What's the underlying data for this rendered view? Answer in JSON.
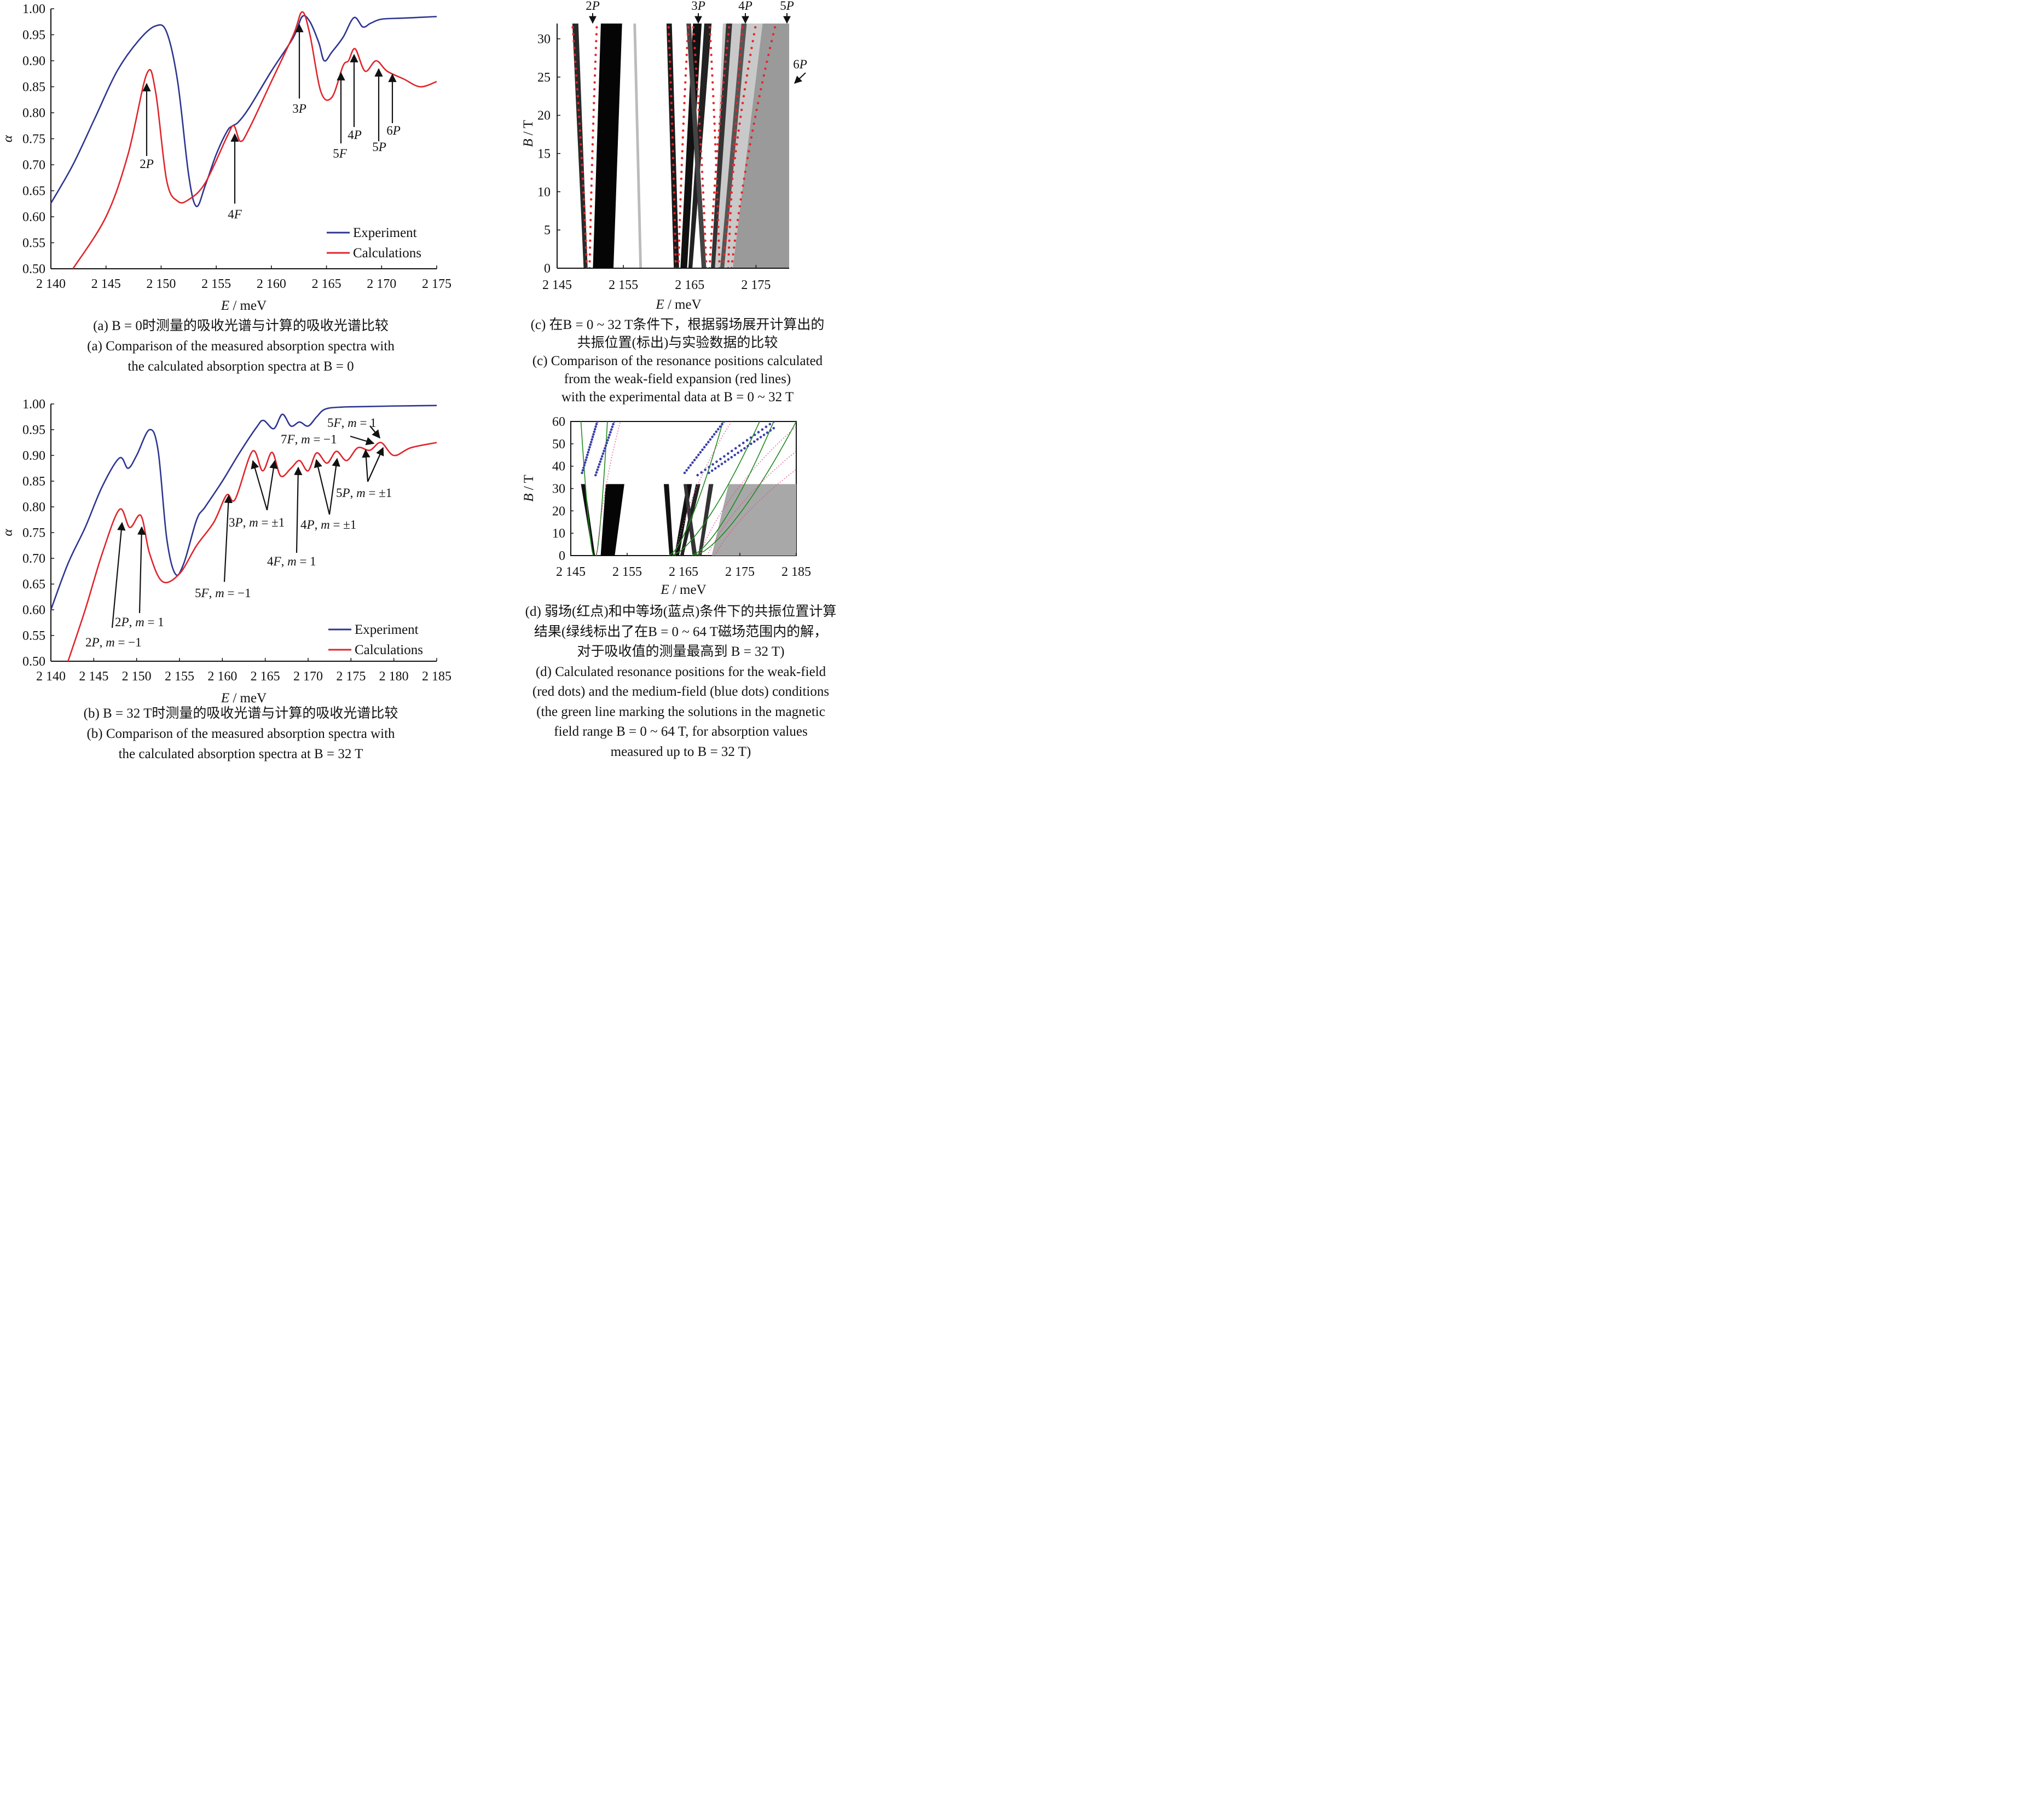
{
  "colors": {
    "experiment": "#2d3590",
    "calculations": "#e0242b",
    "axis": "#111111",
    "dots": "#e8262a",
    "green": "#1f8a1f",
    "blue": "#3b3fa8"
  },
  "panels": {
    "a": {
      "caption_cn": [
        "(a) B = 0时测量的吸收光谱与计算的吸收光谱比较"
      ],
      "caption_en": [
        "(a) Comparison of the measured absorption  spectra with",
        "the calculated absorption spectra at B = 0"
      ]
    },
    "b": {
      "caption_cn": [
        "(b) B = 32 T时测量的吸收光谱与计算的吸收光谱比较"
      ],
      "caption_en": [
        "(b) Comparison of the measured absorption  spectra with",
        "the calculated absorption spectra at B = 32 T"
      ]
    },
    "c": {
      "caption_cn": [
        "(c) 在B = 0 ~ 32 T条件下，根据弱场展开计算出的",
        "共振位置(标出)与实验数据的比较"
      ],
      "caption_en": [
        "(c) Comparison of the resonance positions calculated",
        "from the weak-field expansion (red lines)",
        "with the experimental data at B = 0 ~ 32 T"
      ]
    },
    "d": {
      "caption_cn": [
        "(d) 弱场(红点)和中等场(蓝点)条件下的共振位置计算",
        "结果(绿线标出了在B = 0 ~ 64 T磁场范围内的解，",
        "对于吸收值的测量最高到 B = 32 T)"
      ],
      "caption_en": [
        "(d) Calculated resonance positions for the weak-field",
        "(red dots) and the medium-field (blue dots) conditions",
        "(the green line marking the solutions in the magnetic",
        "field  range B = 0 ~ 64 T, for absorption values",
        "measured up to B = 32 T)"
      ]
    }
  },
  "chart_data": [
    {
      "id": "a",
      "type": "line",
      "title": "",
      "xlabel": "E / meV",
      "ylabel": "α",
      "xlim": [
        2140,
        2175
      ],
      "ylim": [
        0.5,
        1.0
      ],
      "xticks": [
        "2 140",
        "2 145",
        "2 150",
        "2 155",
        "2 160",
        "2 165",
        "2 170",
        "2 175"
      ],
      "yticks": [
        "0.50",
        "0.55",
        "0.60",
        "0.65",
        "0.70",
        "0.75",
        "0.80",
        "0.85",
        "0.90",
        "0.95",
        "1.00"
      ],
      "legend": {
        "position": "bottom-right",
        "entries": [
          "Experiment",
          "Calculations"
        ]
      },
      "series": [
        {
          "name": "Experiment",
          "color": "#2d3590",
          "x": [
            2140,
            2142,
            2144,
            2146,
            2148,
            2149.5,
            2150.5,
            2151.5,
            2152.5,
            2153.2,
            2154,
            2155,
            2156,
            2156.5,
            2157,
            2158,
            2160,
            2162,
            2162.8,
            2163.5,
            2164.3,
            2164.8,
            2165.5,
            2166.5,
            2167.5,
            2168.3,
            2169,
            2170,
            2172,
            2175
          ],
          "y": [
            0.626,
            0.7,
            0.79,
            0.88,
            0.94,
            0.967,
            0.955,
            0.86,
            0.68,
            0.62,
            0.66,
            0.72,
            0.765,
            0.775,
            0.782,
            0.81,
            0.88,
            0.945,
            0.985,
            0.975,
            0.935,
            0.9,
            0.917,
            0.945,
            0.983,
            0.965,
            0.972,
            0.98,
            0.982,
            0.985
          ]
        },
        {
          "name": "Calculations",
          "color": "#e0242b",
          "x": [
            2142,
            2145,
            2147,
            2148.7,
            2149.5,
            2150.5,
            2151.5,
            2152.5,
            2154,
            2156,
            2156.6,
            2157.2,
            2158,
            2160,
            2162,
            2162.8,
            2163.5,
            2164.5,
            2165.5,
            2166.5,
            2167,
            2167.6,
            2168.5,
            2169.5,
            2170.5,
            2172,
            2173.5,
            2175
          ],
          "y": [
            0.5,
            0.6,
            0.72,
            0.875,
            0.84,
            0.67,
            0.63,
            0.633,
            0.665,
            0.755,
            0.775,
            0.745,
            0.77,
            0.86,
            0.95,
            0.994,
            0.95,
            0.84,
            0.83,
            0.89,
            0.9,
            0.923,
            0.88,
            0.9,
            0.88,
            0.865,
            0.85,
            0.86
          ]
        }
      ],
      "annotations": [
        "2P",
        "4F",
        "3P",
        "5F",
        "4P",
        "5P",
        "6P"
      ]
    },
    {
      "id": "b",
      "type": "line",
      "title": "",
      "xlabel": "E / meV",
      "ylabel": "α",
      "xlim": [
        2140,
        2185
      ],
      "ylim": [
        0.5,
        1.0
      ],
      "xticks": [
        "2 140",
        "2 145",
        "2 150",
        "2 155",
        "2 160",
        "2 165",
        "2 170",
        "2 175",
        "2 180",
        "2 185"
      ],
      "yticks": [
        "0.50",
        "0.55",
        "0.60",
        "0.65",
        "0.70",
        "0.75",
        "0.80",
        "0.85",
        "0.90",
        "0.95",
        "1.00"
      ],
      "legend": {
        "position": "bottom-right",
        "entries": [
          "Experiment",
          "Calculations"
        ]
      },
      "series": [
        {
          "name": "Experiment",
          "color": "#2d3590",
          "x": [
            2140,
            2142,
            2144,
            2146,
            2148,
            2149,
            2150,
            2151.5,
            2152.5,
            2153.5,
            2154.5,
            2155.5,
            2157,
            2158,
            2160,
            2162,
            2164,
            2164.8,
            2166,
            2167,
            2168,
            2169,
            2170,
            2171,
            2172,
            2174,
            2177,
            2180,
            2185
          ],
          "y": [
            0.6,
            0.69,
            0.76,
            0.84,
            0.895,
            0.875,
            0.9,
            0.95,
            0.91,
            0.74,
            0.67,
            0.69,
            0.775,
            0.8,
            0.85,
            0.905,
            0.955,
            0.968,
            0.952,
            0.98,
            0.957,
            0.965,
            0.957,
            0.975,
            0.99,
            0.994,
            0.995,
            0.996,
            0.997
          ]
        },
        {
          "name": "Calculations",
          "color": "#e0242b",
          "x": [
            2142,
            2144,
            2146,
            2148,
            2149.2,
            2150.5,
            2151.5,
            2153,
            2155,
            2157,
            2159,
            2160.5,
            2161.5,
            2163.5,
            2164.7,
            2165.8,
            2166.8,
            2168,
            2169,
            2170,
            2171,
            2172.2,
            2173.3,
            2174.5,
            2175.8,
            2177.2,
            2178.5,
            2180,
            2182,
            2185
          ],
          "y": [
            0.5,
            0.6,
            0.71,
            0.795,
            0.76,
            0.783,
            0.71,
            0.655,
            0.67,
            0.725,
            0.77,
            0.823,
            0.815,
            0.908,
            0.87,
            0.906,
            0.86,
            0.875,
            0.89,
            0.87,
            0.905,
            0.885,
            0.908,
            0.89,
            0.915,
            0.91,
            0.925,
            0.9,
            0.915,
            0.925
          ]
        }
      ],
      "annotations": [
        "2P, m = 1",
        "2P, m = −1",
        "5F, m = −1",
        "3P, m = ±1",
        "4F, m = 1",
        "4P, m = ±1",
        "5P, m = ±1",
        "7F, m = −1",
        "5F, m = 1"
      ]
    },
    {
      "id": "c",
      "type": "heatmap",
      "title": "",
      "xlabel": "E / meV",
      "ylabel": "B / T",
      "xlim": [
        2145,
        2180
      ],
      "ylim": [
        0,
        32
      ],
      "xticks": [
        "2 145",
        "2 155",
        "2 165",
        "2 175"
      ],
      "yticks": [
        "0",
        "5",
        "10",
        "15",
        "20",
        "25",
        "30"
      ],
      "top_labels": [
        "2P",
        "3P",
        "4P",
        "5P",
        "6P"
      ],
      "resonance_lines": [
        {
          "E0": 2149.5,
          "E32": 2147.3
        },
        {
          "E0": 2149.9,
          "E32": 2151.0
        },
        {
          "E0": 2162.9,
          "E32": 2161.8
        },
        {
          "E0": 2163.3,
          "E32": 2164.8
        },
        {
          "E0": 2167.5,
          "E32": 2165.5
        },
        {
          "E0": 2168.0,
          "E32": 2171.0
        },
        {
          "E0": 2169.5,
          "E32": 2168.0
        },
        {
          "E0": 2170.0,
          "E32": 2175.0
        },
        {
          "E0": 2170.8,
          "E32": 2173.0
        },
        {
          "E0": 2171.3,
          "E32": 2178.0
        }
      ]
    },
    {
      "id": "d",
      "type": "heatmap",
      "title": "",
      "xlabel": "E / meV",
      "ylabel": "B / T",
      "xlim": [
        2145,
        2185
      ],
      "ylim": [
        0,
        60
      ],
      "xticks": [
        "2 145",
        "2 155",
        "2 165",
        "2 175",
        "2 185"
      ],
      "yticks": [
        "0",
        "10",
        "20",
        "30",
        "40",
        "50",
        "60"
      ],
      "measured_up_to_B": 32
    }
  ]
}
